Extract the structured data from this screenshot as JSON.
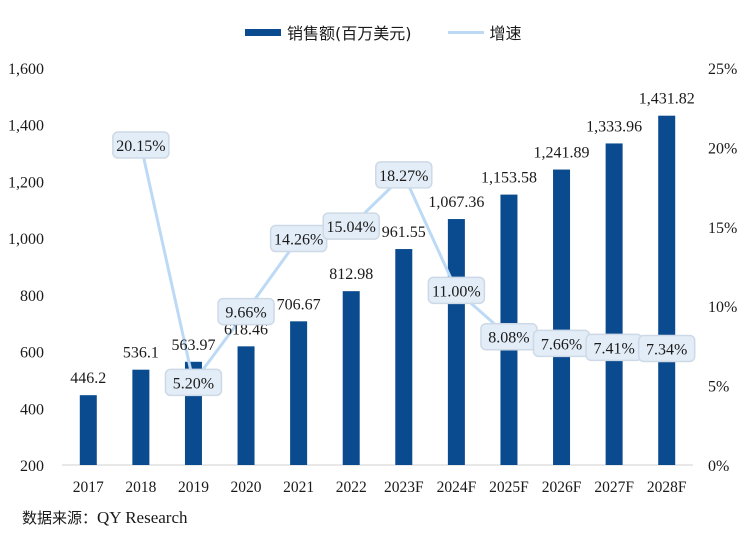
{
  "chart_data": {
    "type": "bar+line",
    "categories": [
      "2017",
      "2018",
      "2019",
      "2020",
      "2021",
      "2022",
      "2023F",
      "2024F",
      "2025F",
      "2026F",
      "2027F",
      "2028F"
    ],
    "series": [
      {
        "name": "销售额(百万美元)",
        "type": "bar",
        "axis": "left",
        "color": "#0a4a8f",
        "values": [
          446.2,
          536.1,
          563.97,
          618.46,
          706.67,
          812.98,
          961.55,
          1067.36,
          1153.58,
          1241.89,
          1333.96,
          1431.82
        ],
        "labels": [
          "446.2",
          "536.1",
          "563.97",
          "618.46",
          "706.67",
          "812.98",
          "961.55",
          "1,067.36",
          "1,153.58",
          "1,241.89",
          "1,333.96",
          "1,431.82"
        ]
      },
      {
        "name": "增速",
        "type": "line",
        "axis": "right",
        "color": "#bcdaf5",
        "values": [
          null,
          20.15,
          5.2,
          9.66,
          14.26,
          15.04,
          18.27,
          11.0,
          8.08,
          7.66,
          7.41,
          7.34
        ],
        "labels": [
          null,
          "20.15%",
          "5.20%",
          "9.66%",
          "14.26%",
          "15.04%",
          "18.27%",
          "11.00%",
          "8.08%",
          "7.66%",
          "7.41%",
          "7.34%"
        ]
      }
    ],
    "left_axis": {
      "ylim": [
        200,
        1600
      ],
      "ticks": [
        "200",
        "400",
        "600",
        "800",
        "1,000",
        "1,200",
        "1,400",
        "1,600"
      ]
    },
    "right_axis": {
      "ylim": [
        0,
        25
      ],
      "ticks": [
        "0%",
        "5%",
        "10%",
        "15%",
        "20%",
        "25%"
      ]
    },
    "legend_position": "top-center",
    "grid": false
  },
  "legend": {
    "bar_label": "销售额(百万美元)",
    "line_label": "增速"
  },
  "source": {
    "prefix": "数据来源：",
    "name": "QY Research"
  }
}
